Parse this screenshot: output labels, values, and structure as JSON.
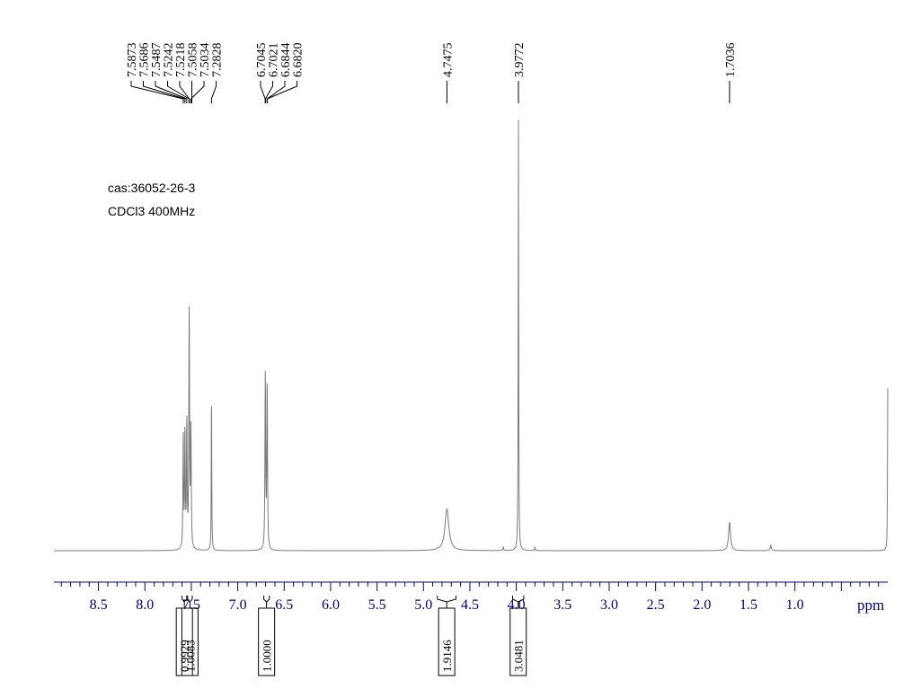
{
  "chart_data": {
    "type": "line",
    "title": "",
    "xlabel": "ppm",
    "ylabel": "",
    "xlim": [
      8.98,
      0.0
    ],
    "x_reversed": true,
    "grid": false,
    "annotations": [
      "cas:36052-26-3",
      "CDCl3  400MHz"
    ],
    "x_ticks": [
      8.5,
      8.0,
      7.5,
      7.0,
      6.5,
      6.0,
      5.5,
      5.0,
      4.5,
      4.0,
      3.5,
      3.0,
      2.5,
      2.0,
      1.5,
      1.0
    ],
    "x_tick_labels": [
      "8.5",
      "8.0",
      "7.5",
      "7.0",
      "6.5",
      "6.0",
      "5.5",
      "5.0",
      "4.5",
      "4.0",
      "3.5",
      "3.0",
      "2.5",
      "2.0",
      "1.5",
      "1.0"
    ],
    "peak_labels": [
      {
        "shift": 7.5873,
        "label": "7.5873"
      },
      {
        "shift": 7.5686,
        "label": "7.5686"
      },
      {
        "shift": 7.5487,
        "label": "7.5487"
      },
      {
        "shift": 7.5242,
        "label": "7.5242"
      },
      {
        "shift": 7.5218,
        "label": "7.5218"
      },
      {
        "shift": 7.5058,
        "label": "7.5058"
      },
      {
        "shift": 7.5034,
        "label": "7.5034"
      },
      {
        "shift": 7.2828,
        "label": "7.2828"
      },
      {
        "shift": 6.7045,
        "label": "6.7045"
      },
      {
        "shift": 6.7021,
        "label": "6.7021"
      },
      {
        "shift": 6.6844,
        "label": "6.6844"
      },
      {
        "shift": 6.682,
        "label": "6.6820"
      },
      {
        "shift": 4.7475,
        "label": "4.7475"
      },
      {
        "shift": 3.9772,
        "label": "3.9772"
      },
      {
        "shift": 1.7036,
        "label": "1.7036"
      }
    ],
    "series": [
      {
        "peaks": [
          {
            "shift": 7.5873,
            "height": 0.26,
            "width": 0.004
          },
          {
            "shift": 7.5686,
            "height": 0.27,
            "width": 0.004
          },
          {
            "shift": 7.5487,
            "height": 0.29,
            "width": 0.004
          },
          {
            "shift": 7.5242,
            "height": 0.3,
            "width": 0.004
          },
          {
            "shift": 7.5218,
            "height": 0.29,
            "width": 0.004
          },
          {
            "shift": 7.5058,
            "height": 0.15,
            "width": 0.004
          },
          {
            "shift": 7.5034,
            "height": 0.14,
            "width": 0.004
          },
          {
            "shift": 7.2828,
            "height": 0.37,
            "width": 0.003
          },
          {
            "shift": 6.7045,
            "height": 0.22,
            "width": 0.004
          },
          {
            "shift": 6.7021,
            "height": 0.21,
            "width": 0.004
          },
          {
            "shift": 6.6844,
            "height": 0.21,
            "width": 0.004
          },
          {
            "shift": 6.682,
            "height": 0.2,
            "width": 0.004
          },
          {
            "shift": 4.7475,
            "height": 0.095,
            "width": 0.025
          },
          {
            "shift": 4.14,
            "height": 0.008,
            "width": 0.004
          },
          {
            "shift": 3.9772,
            "height": 0.98,
            "width": 0.003
          },
          {
            "shift": 3.8,
            "height": 0.008,
            "width": 0.004
          },
          {
            "shift": 1.7036,
            "height": 0.065,
            "width": 0.012
          },
          {
            "shift": 1.26,
            "height": 0.012,
            "width": 0.008
          },
          {
            "shift": 0.0,
            "height": 0.37,
            "width": 0.003
          }
        ]
      }
    ],
    "integrals": [
      {
        "from": 7.6,
        "to": 7.55,
        "value": "0.9929"
      },
      {
        "from": 7.54,
        "to": 7.49,
        "value": "1.0083"
      },
      {
        "from": 6.72,
        "to": 6.66,
        "value": "1.0000"
      },
      {
        "from": 4.85,
        "to": 4.65,
        "value": "1.9146"
      },
      {
        "from": 4.04,
        "to": 3.92,
        "value": "3.0481"
      }
    ]
  }
}
